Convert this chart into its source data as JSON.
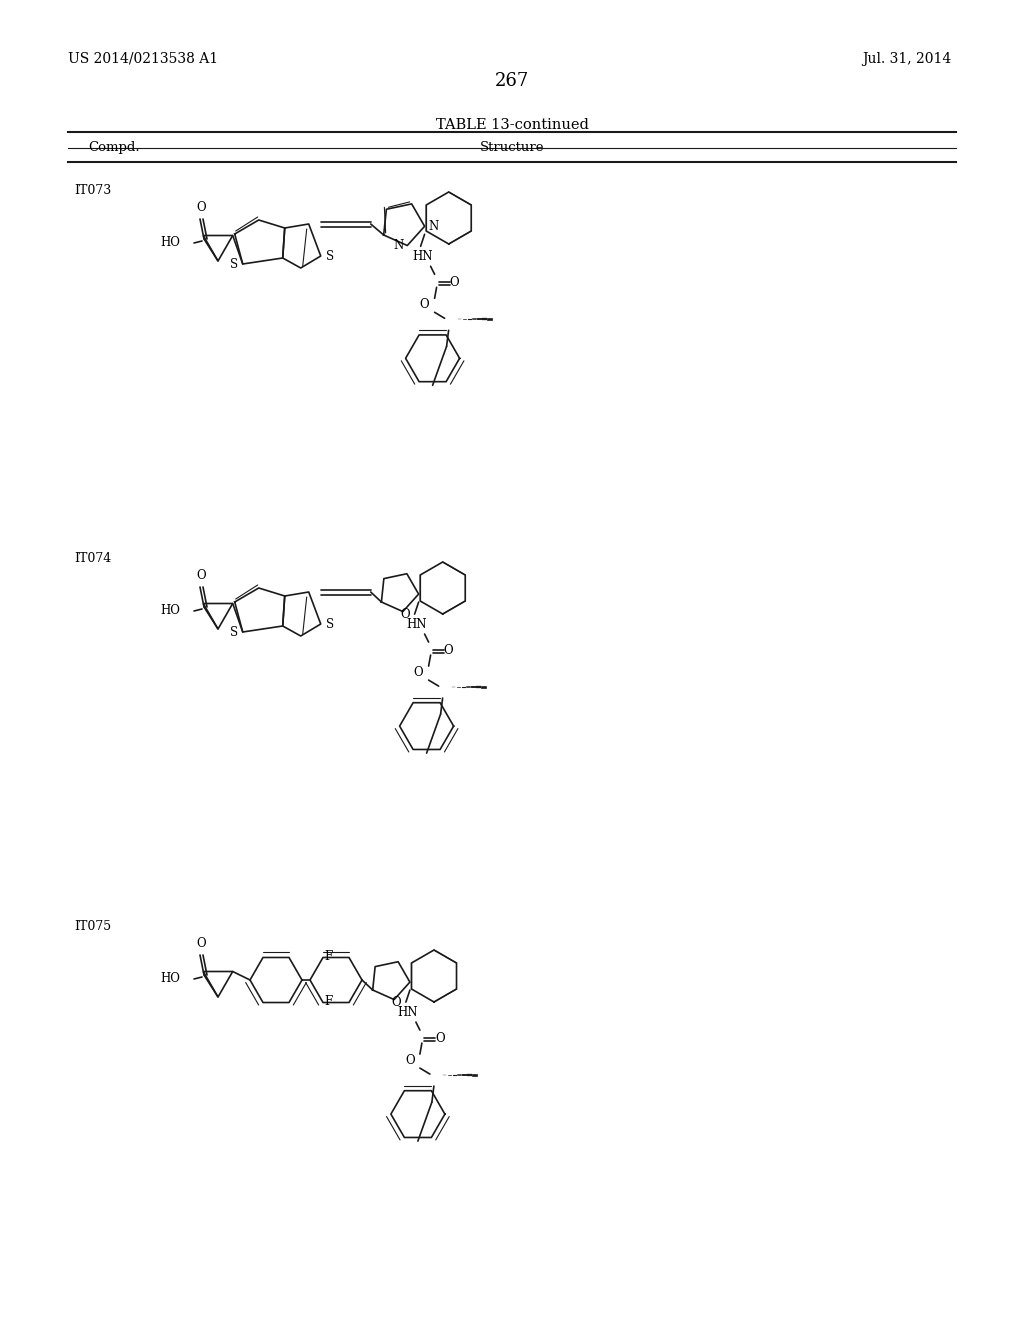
{
  "page_number": "267",
  "patent_number": "US 2014/0213538 A1",
  "patent_date": "Jul. 31, 2014",
  "table_title": "TABLE 13-continued",
  "col1_header": "Compd.",
  "col2_header": "Structure",
  "compounds": [
    "IT073",
    "IT074",
    "IT075"
  ],
  "background_color": "#ffffff",
  "text_color": "#000000",
  "line_color": "#1a1a1a",
  "line_width": 1.2
}
